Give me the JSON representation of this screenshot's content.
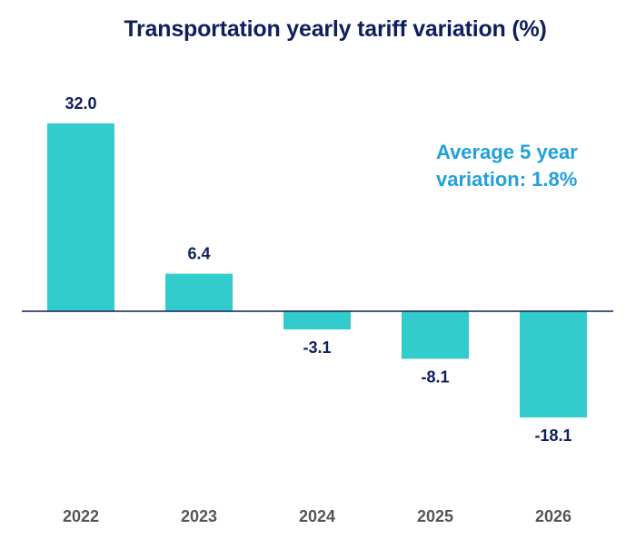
{
  "chart_data": {
    "type": "bar",
    "title": "Transportation yearly tariff variation (%)",
    "categories": [
      "2022",
      "2023",
      "2024",
      "2025",
      "2026"
    ],
    "values": [
      32.0,
      6.4,
      -3.1,
      -8.1,
      -18.1
    ],
    "data_labels": [
      "32.0",
      "6.4",
      "-3.1",
      "-8.1",
      "-18.1"
    ],
    "annotation": [
      "Average 5 year",
      "variation: 1.8%"
    ],
    "xlabel": "",
    "ylabel": "",
    "ylim": [
      -20,
      35
    ],
    "grid": false,
    "colors": {
      "bar": "#33cccc",
      "axis": "#0f1f5c",
      "title": "#0f1f5c",
      "annotation": "#20a0dc",
      "category": "#555555"
    }
  }
}
